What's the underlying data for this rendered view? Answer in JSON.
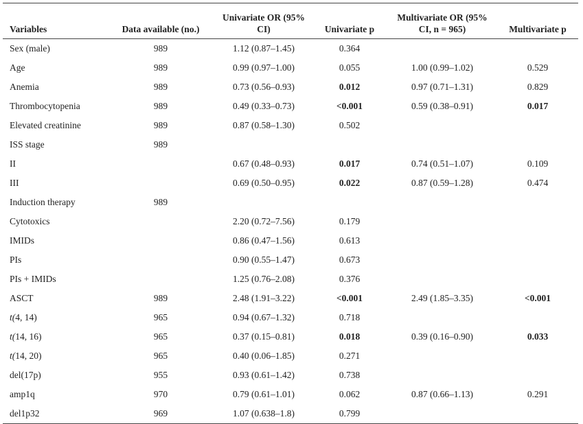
{
  "table": {
    "header": [
      "Variables",
      "Data available (no.)",
      "Univariate OR (95% CI)",
      "Univariate p",
      "Multivariate OR (95% CI, n = 965)",
      "Multivariate p"
    ],
    "rows": [
      [
        "Sex (male)",
        "989",
        "1.12 (0.87–1.45)",
        "0.364",
        null,
        null
      ],
      [
        "Age",
        "989",
        "0.99 (0.97–1.00)",
        "0.055",
        "1.00 (0.99–1.02)",
        "0.529"
      ],
      [
        "Anemia",
        "989",
        "0.73 (0.56–0.93)",
        "0.012",
        "0.97 (0.71–1.31)",
        "0.829"
      ],
      [
        "Thrombocytopenia",
        "989",
        "0.49 (0.33–0.73)",
        "<0.001",
        "0.59 (0.38–0.91)",
        "0.017"
      ],
      [
        "Elevated creatinine",
        "989",
        "0.87 (0.58–1.30)",
        "0.502",
        null,
        null
      ],
      [
        "ISS stage",
        "989",
        null,
        null,
        null,
        null
      ],
      [
        "II",
        null,
        "0.67 (0.48–0.93)",
        "0.017",
        "0.74 (0.51–1.07)",
        "0.109"
      ],
      [
        "III",
        null,
        "0.69 (0.50–0.95)",
        "0.022",
        "0.87 (0.59–1.28)",
        "0.474"
      ],
      [
        "Induction therapy",
        "989",
        null,
        null,
        null,
        null
      ],
      [
        "Cytotoxics",
        null,
        "2.20 (0.72–7.56)",
        "0.179",
        null,
        null
      ],
      [
        "IMIDs",
        null,
        "0.86 (0.47–1.56)",
        "0.613",
        null,
        null
      ],
      [
        "PIs",
        null,
        "0.90 (0.55–1.47)",
        "0.673",
        null,
        null
      ],
      [
        "PIs + IMIDs",
        null,
        "1.25 (0.76–2.08)",
        "0.376",
        null,
        null
      ],
      [
        "ASCT",
        "989",
        "2.48 (1.91–3.22)",
        "<0.001",
        "2.49 (1.85–3.35)",
        "<0.001"
      ],
      [
        "t(4, 14)",
        "965",
        "0.94 (0.67–1.32)",
        "0.718",
        null,
        null
      ],
      [
        "t(14, 16)",
        "965",
        "0.37 (0.15–0.81)",
        "0.018",
        "0.39 (0.16–0.90)",
        "0.033"
      ],
      [
        "t(14, 20)",
        "965",
        "0.40 (0.06–1.85)",
        "0.271",
        null,
        null
      ],
      [
        "del(17p)",
        "955",
        "0.93 (0.61–1.42)",
        "0.738",
        null,
        null
      ],
      [
        "amp1q",
        "970",
        "0.79 (0.61–1.01)",
        "0.062",
        "0.87 (0.66–1.13)",
        "0.291"
      ],
      [
        "del1p32",
        "969",
        "1.07 (0.638–1.8)",
        "0.799",
        null,
        null
      ]
    ],
    "bold_cells": [
      [
        2,
        3
      ],
      [
        3,
        3
      ],
      [
        3,
        5
      ],
      [
        6,
        3
      ],
      [
        7,
        3
      ],
      [
        13,
        3
      ],
      [
        13,
        5
      ],
      [
        15,
        3
      ],
      [
        15,
        5
      ]
    ],
    "italic_first_letter_rows": [
      14,
      15,
      16
    ]
  }
}
